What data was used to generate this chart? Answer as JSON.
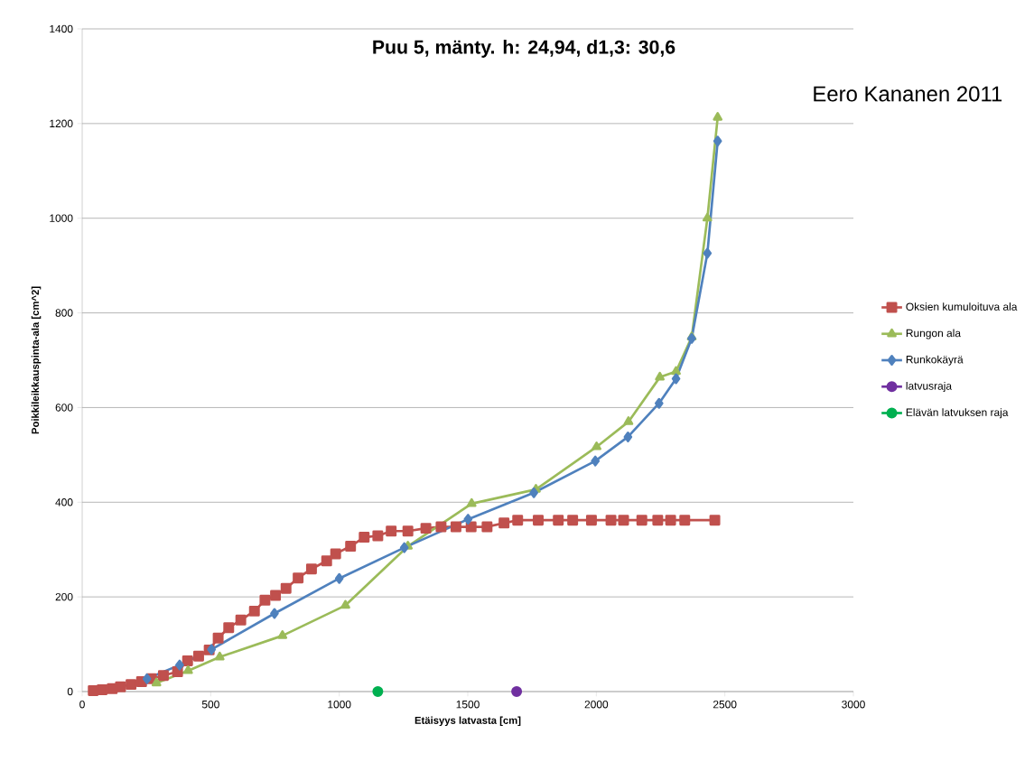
{
  "chart_data": {
    "type": "line",
    "title": "**Puu 5, mänty. h: 24,94, d1,3: 30,6**",
    "xlabel": "Etäisyys latvasta [cm]",
    "ylabel": "Poikkileikkauspinta-ala [cm^2]",
    "annotations": [
      "Eero Kananen 2011"
    ],
    "xlim": [
      0,
      3000
    ],
    "ylim": [
      0,
      1400
    ],
    "xticks": [
      0,
      500,
      1000,
      1500,
      2000,
      2500,
      3000
    ],
    "yticks": [
      0,
      200,
      400,
      600,
      800,
      1000,
      1200,
      1400
    ],
    "grid": "y",
    "legend": "right",
    "series": [
      {
        "name": "Oksien kumuloituva ala",
        "color": "#c0504d",
        "marker": "square",
        "x": [
          43,
          78,
          117,
          149,
          190,
          231,
          269,
          316,
          371,
          410,
          453,
          494,
          529,
          570,
          617,
          670,
          711,
          752,
          793,
          840,
          892,
          951,
          986,
          1044,
          1097,
          1150,
          1202,
          1267,
          1337,
          1396,
          1454,
          1513,
          1575,
          1641,
          1694,
          1774,
          1852,
          1908,
          1981,
          2057,
          2106,
          2177,
          2239,
          2289,
          2344,
          2461
        ],
        "values": [
          2,
          4,
          6,
          10,
          15,
          21,
          27,
          34,
          42,
          65,
          75,
          88,
          113,
          135,
          151,
          170,
          193,
          203,
          218,
          240,
          259,
          276,
          291,
          307,
          326,
          329,
          339,
          339,
          345,
          348,
          348,
          348,
          348,
          356,
          362,
          362,
          362,
          362,
          362,
          362,
          362,
          362,
          362,
          362,
          362,
          362
        ]
      },
      {
        "name": "Rungon ala",
        "color": "#9bbb59",
        "marker": "triangle",
        "x": [
          289,
          412,
          535,
          779,
          1024,
          1267,
          1515,
          1765,
          2001,
          2125,
          2247,
          2310,
          2371,
          2432,
          2472
        ],
        "values": [
          18,
          44,
          73,
          118,
          182,
          307,
          397,
          427,
          517,
          570,
          664,
          676,
          749,
          1000,
          1213
        ]
      },
      {
        "name": "Runkokäyrä",
        "color": "#4f81bd",
        "marker": "diamond",
        "x": [
          252,
          379,
          503,
          748,
          1000,
          1253,
          1501,
          1757,
          1996,
          2123,
          2244,
          2310,
          2371,
          2432,
          2472
        ],
        "values": [
          27,
          56,
          89,
          165,
          239,
          304,
          364,
          420,
          487,
          538,
          609,
          661,
          746,
          926,
          1163
        ]
      },
      {
        "name": "latvusraja",
        "color": "#7030a0",
        "marker": "circle",
        "x": [
          1690
        ],
        "values": [
          0
        ]
      },
      {
        "name": "Elävän latvuksen raja",
        "color": "#00b050",
        "marker": "circle",
        "x": [
          1150
        ],
        "values": [
          0
        ]
      }
    ]
  }
}
